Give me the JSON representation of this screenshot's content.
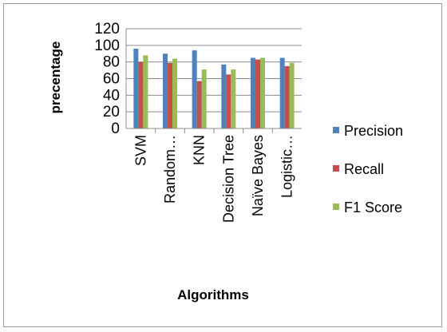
{
  "chart_data": {
    "type": "bar",
    "title": "",
    "xlabel": "Algorithms",
    "ylabel": "precentage",
    "ylim": [
      0,
      120
    ],
    "yticks": [
      0,
      20,
      40,
      60,
      80,
      100,
      120
    ],
    "grid": true,
    "legend_position": "right",
    "categories": [
      "SVM",
      "Random…",
      "KNN",
      "Decision Tree",
      "Naïve Bayes",
      "Logistic…"
    ],
    "series": [
      {
        "name": "Precision",
        "color": "#4F81BD",
        "values": [
          96,
          90,
          94,
          77,
          85,
          85
        ]
      },
      {
        "name": "Recall",
        "color": "#C0504D",
        "values": [
          80,
          79,
          57,
          65,
          83,
          75
        ]
      },
      {
        "name": "F1 Score",
        "color": "#9BBB59",
        "values": [
          88,
          84,
          71,
          71,
          85,
          79
        ]
      }
    ]
  }
}
